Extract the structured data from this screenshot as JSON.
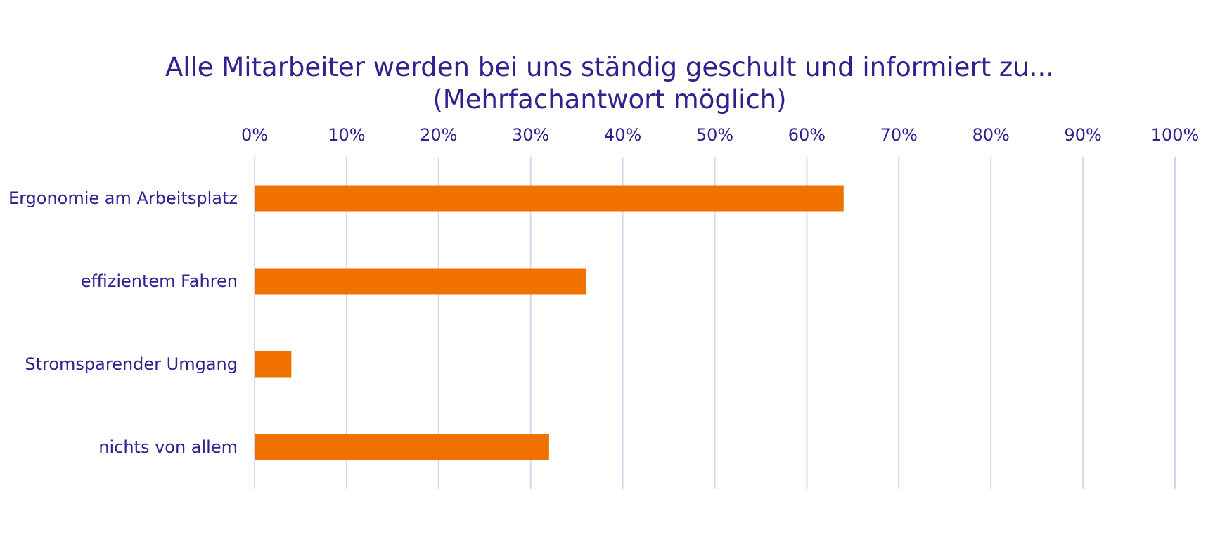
{
  "colors": {
    "text": "#31218f",
    "bar": "#f07100",
    "grid": "#d6d6f0"
  },
  "chart_data": {
    "type": "bar",
    "orientation": "horizontal",
    "title_lines": [
      "Alle Mitarbeiter werden bei uns ständig geschult und informiert zu...",
      "(Mehrfachantwort möglich)"
    ],
    "xlabel": "",
    "ylabel": "",
    "categories": [
      "Ergonomie am Arbeitsplatz",
      "effizientem Fahren",
      "Stromsparender Umgang",
      "nichts von allem"
    ],
    "values": [
      64,
      36,
      4,
      32
    ],
    "value_unit": "%",
    "xlim": [
      0,
      100
    ],
    "xticks": [
      0,
      10,
      20,
      30,
      40,
      50,
      60,
      70,
      80,
      90,
      100
    ],
    "xtick_labels": [
      "0%",
      "10%",
      "20%",
      "30%",
      "40%",
      "50%",
      "60%",
      "70%",
      "80%",
      "90%",
      "100%"
    ],
    "x_axis_position": "top",
    "grid": true,
    "legend": "none"
  }
}
